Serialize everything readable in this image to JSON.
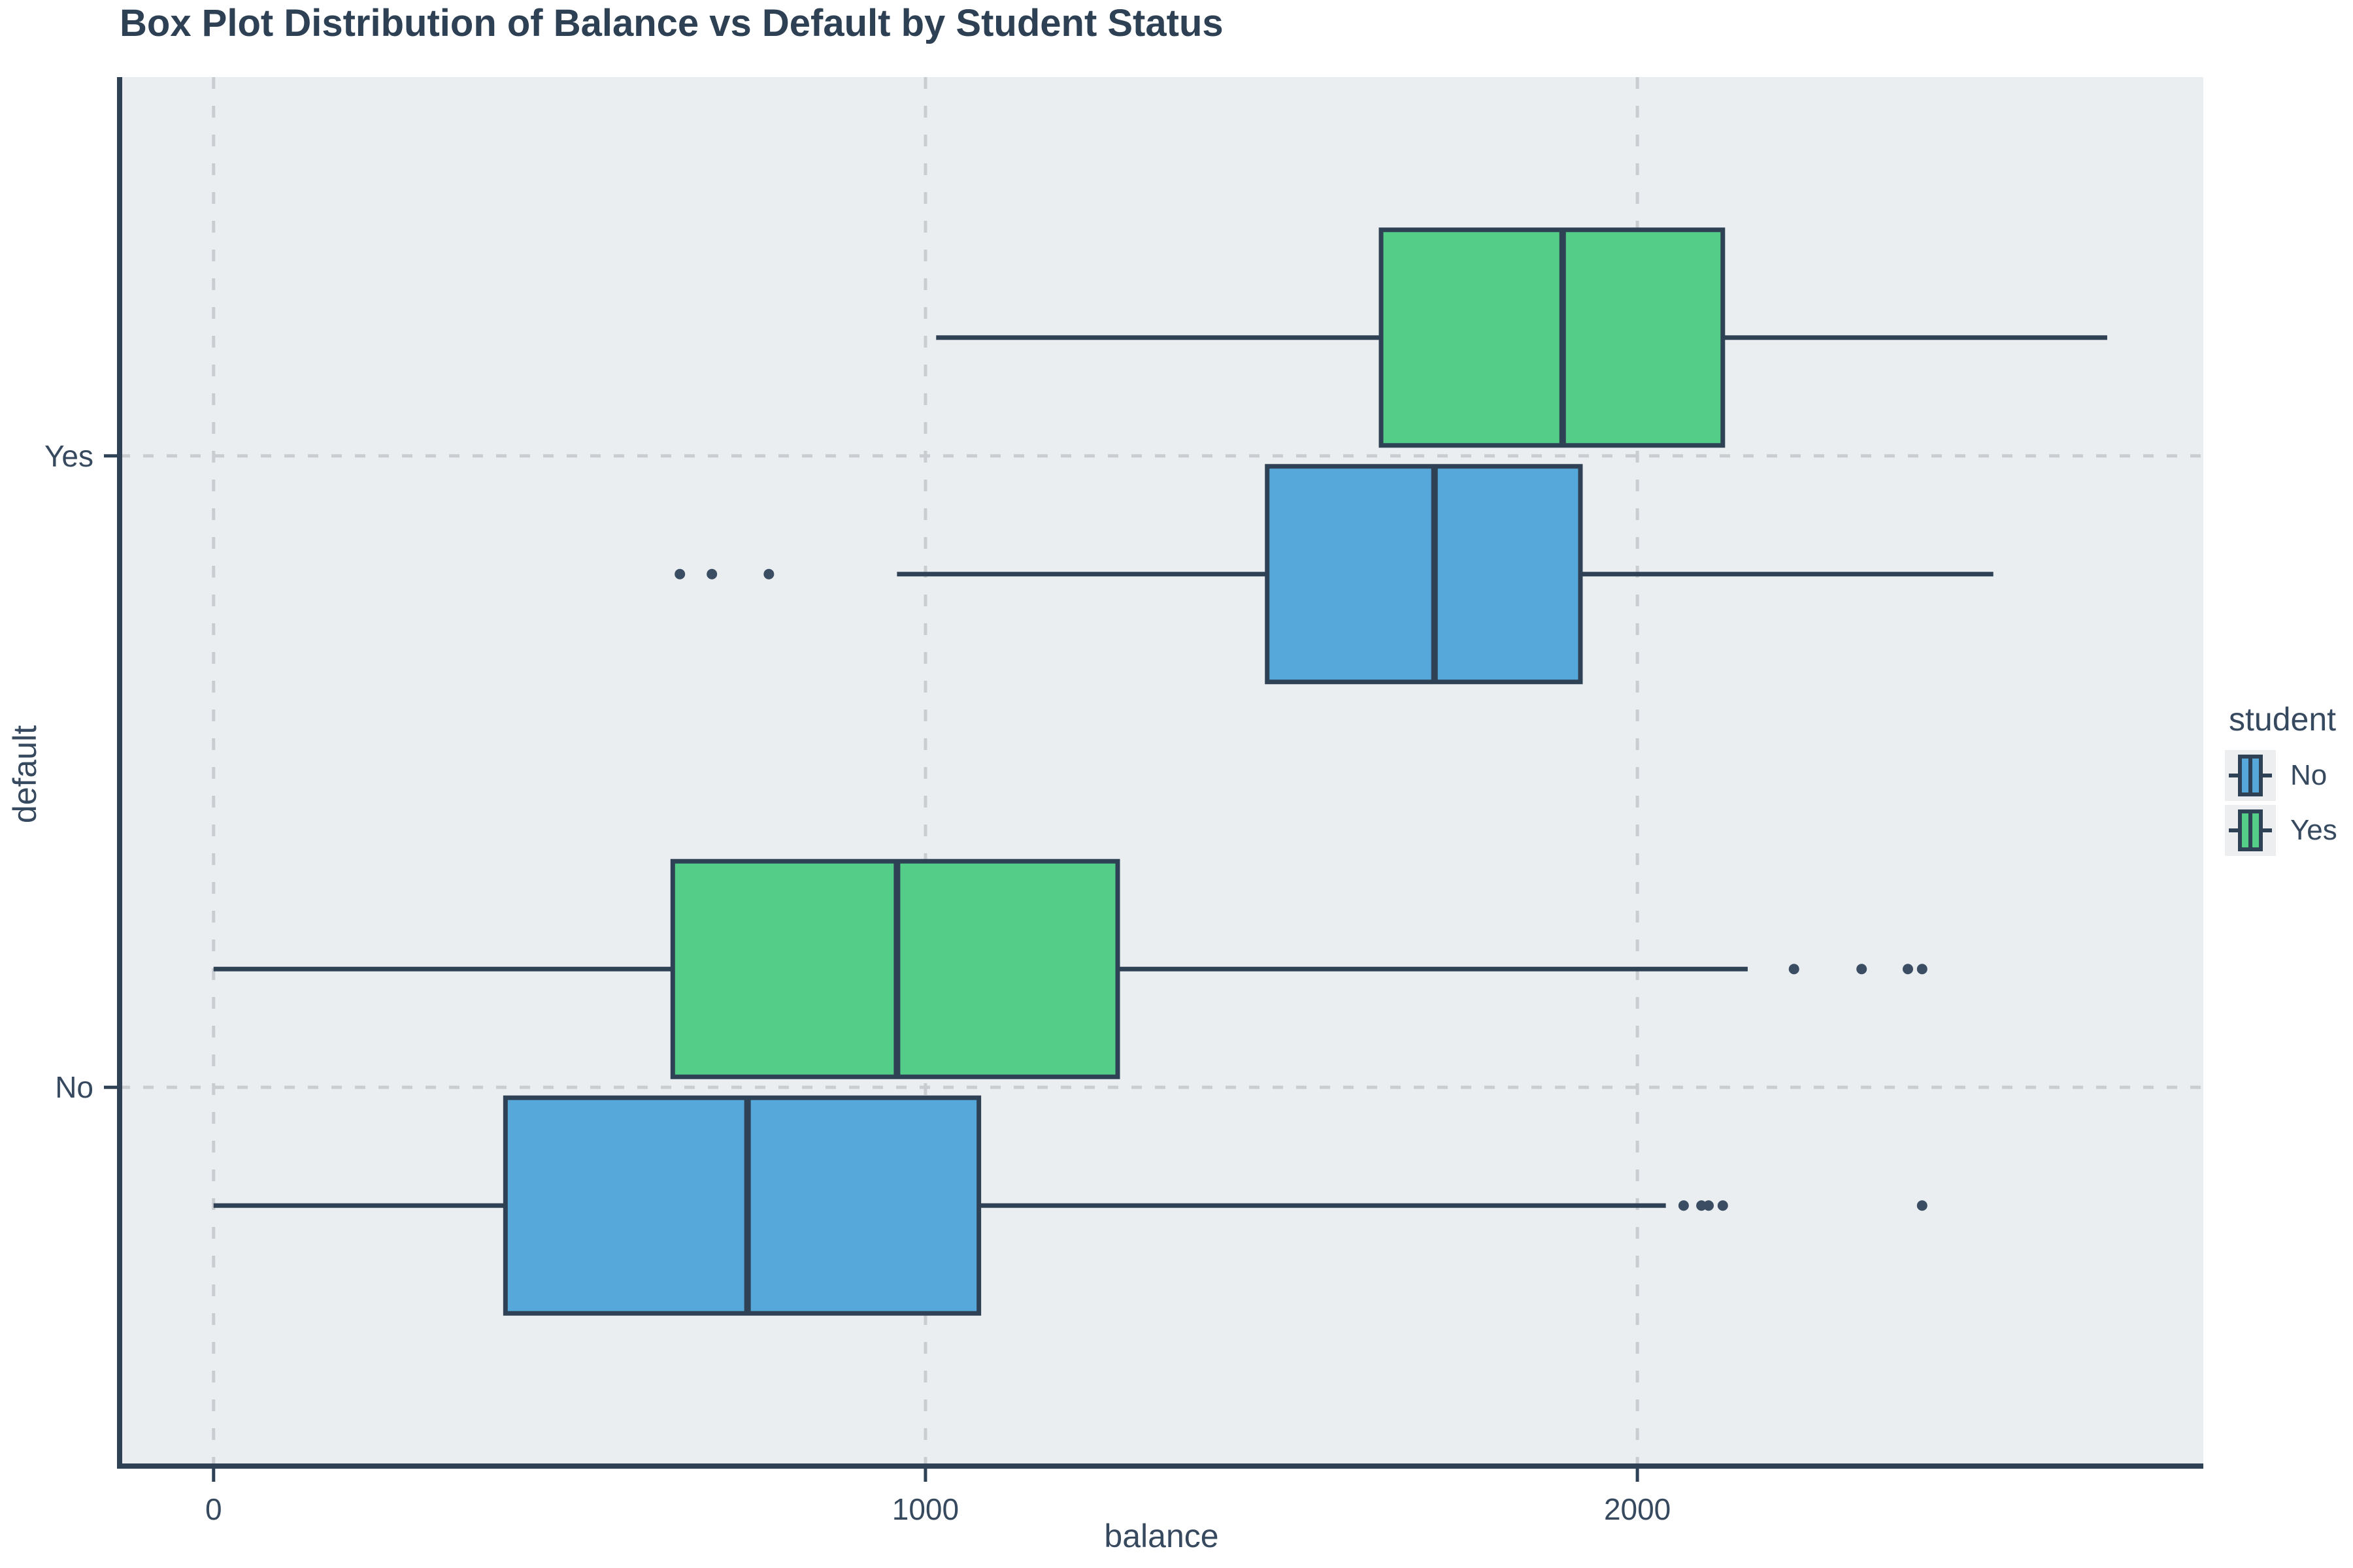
{
  "title": "Box Plot Distribution of Balance vs Default by Student Status",
  "axes": {
    "x": {
      "label": "balance"
    },
    "y": {
      "label": "default"
    }
  },
  "legend": {
    "title": "student",
    "items": [
      {
        "label": "No",
        "color": "#56a8db"
      },
      {
        "label": "Yes",
        "color": "#53cd88"
      }
    ]
  },
  "colors": {
    "blue_fill": "#56a8db",
    "green_fill": "#53cd88",
    "box_border": "#2f4154",
    "text": "#36495e",
    "panel_background": "#ebeef0",
    "gridline": "#c9cdd2",
    "outlier_point": "#3a4d63",
    "legend_key_background": "#eceeef"
  },
  "chart_data": {
    "type": "boxplot",
    "orientation": "horizontal",
    "title": "Box Plot Distribution of Balance vs Default by Student Status",
    "xlabel": "balance",
    "ylabel": "default",
    "x_axis": {
      "ticks": [
        0,
        1000,
        2000
      ],
      "domain": [
        -132,
        2795
      ],
      "grid": "dashed"
    },
    "y_axis": {
      "categories": [
        "Yes",
        "No"
      ],
      "grid": "dashed"
    },
    "group_by": "student",
    "series": [
      {
        "default": "Yes",
        "student": "Yes",
        "color_key": "green_fill",
        "whisker_low": 1015,
        "q1": 1640,
        "median": 1895,
        "q3": 2120,
        "whisker_high": 2660,
        "outliers": []
      },
      {
        "default": "Yes",
        "student": "No",
        "color_key": "blue_fill",
        "whisker_low": 960,
        "q1": 1480,
        "median": 1715,
        "q3": 1920,
        "whisker_high": 2500,
        "outliers": [
          655,
          700,
          780
        ]
      },
      {
        "default": "No",
        "student": "Yes",
        "color_key": "green_fill",
        "whisker_low": 0,
        "q1": 645,
        "median": 960,
        "q3": 1270,
        "whisker_high": 2155,
        "outliers": [
          2220,
          2315,
          2380,
          2400
        ]
      },
      {
        "default": "No",
        "student": "No",
        "color_key": "blue_fill",
        "whisker_low": 0,
        "q1": 410,
        "median": 750,
        "q3": 1075,
        "whisker_high": 2040,
        "outliers": [
          2065,
          2090,
          2100,
          2120,
          2400
        ]
      }
    ]
  }
}
